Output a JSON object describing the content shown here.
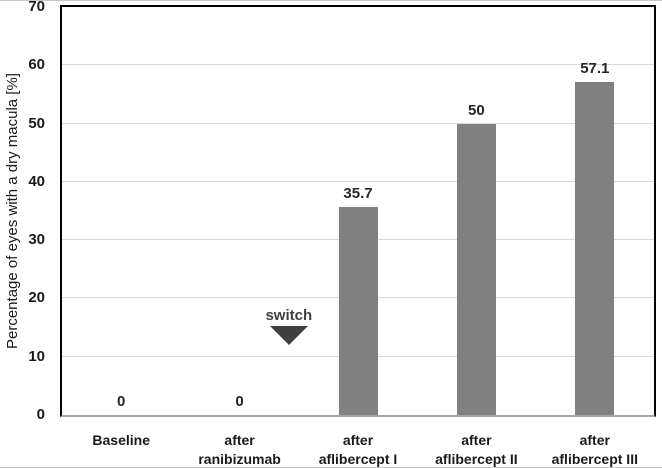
{
  "figure": {
    "background": "#ffffff",
    "edge_line_color": "#c9c9c9"
  },
  "chart_data": {
    "type": "bar",
    "title": "",
    "ylabel": "Percentage of eyes with a dry macula [%]",
    "xlabel": "",
    "ylim": [
      0,
      70
    ],
    "yticks": [
      0,
      10,
      20,
      30,
      40,
      50,
      60,
      70
    ],
    "grid": true,
    "legend": false,
    "categories": [
      "Baseline",
      "after ranibizumab",
      "after aflibercept I",
      "after aflibercept II",
      "after aflibercept III"
    ],
    "category_label_lines": [
      [
        "Baseline"
      ],
      [
        "after",
        "ranibizumab"
      ],
      [
        "after",
        "aflibercept I"
      ],
      [
        "after",
        "aflibercept II"
      ],
      [
        "after",
        "aflibercept III"
      ]
    ],
    "values": [
      0,
      0,
      35.7,
      50,
      57.1
    ],
    "bar_labels": [
      "0",
      "0",
      "35.7",
      "50",
      "57.1"
    ],
    "annotation": {
      "text": "switch",
      "marker": "down-triangle-icon",
      "position": "between 'after ranibizumab' and 'after aflibercept I', pointing down at ~13% height"
    },
    "colors": {
      "bar": "#808080",
      "gridline": "#d9d9d9",
      "axis_line": "#a6a6a6",
      "plot_border": "#000000",
      "data_label": "#262626",
      "axis_label": "#1a1a1a",
      "annotation": "#404040",
      "background": "#ffffff"
    }
  }
}
